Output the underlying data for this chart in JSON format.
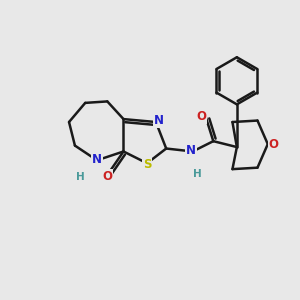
{
  "background_color": "#e8e8e8",
  "bond_color": "#1a1a1a",
  "bond_width": 1.8,
  "N_color": "#2222cc",
  "S_color": "#bbbb00",
  "O_color": "#cc2222",
  "H_color": "#4a9a9a",
  "fig_size": [
    3.0,
    3.0
  ],
  "dpi": 100,
  "xlim": [
    0,
    10
  ],
  "ylim": [
    0,
    10
  ]
}
